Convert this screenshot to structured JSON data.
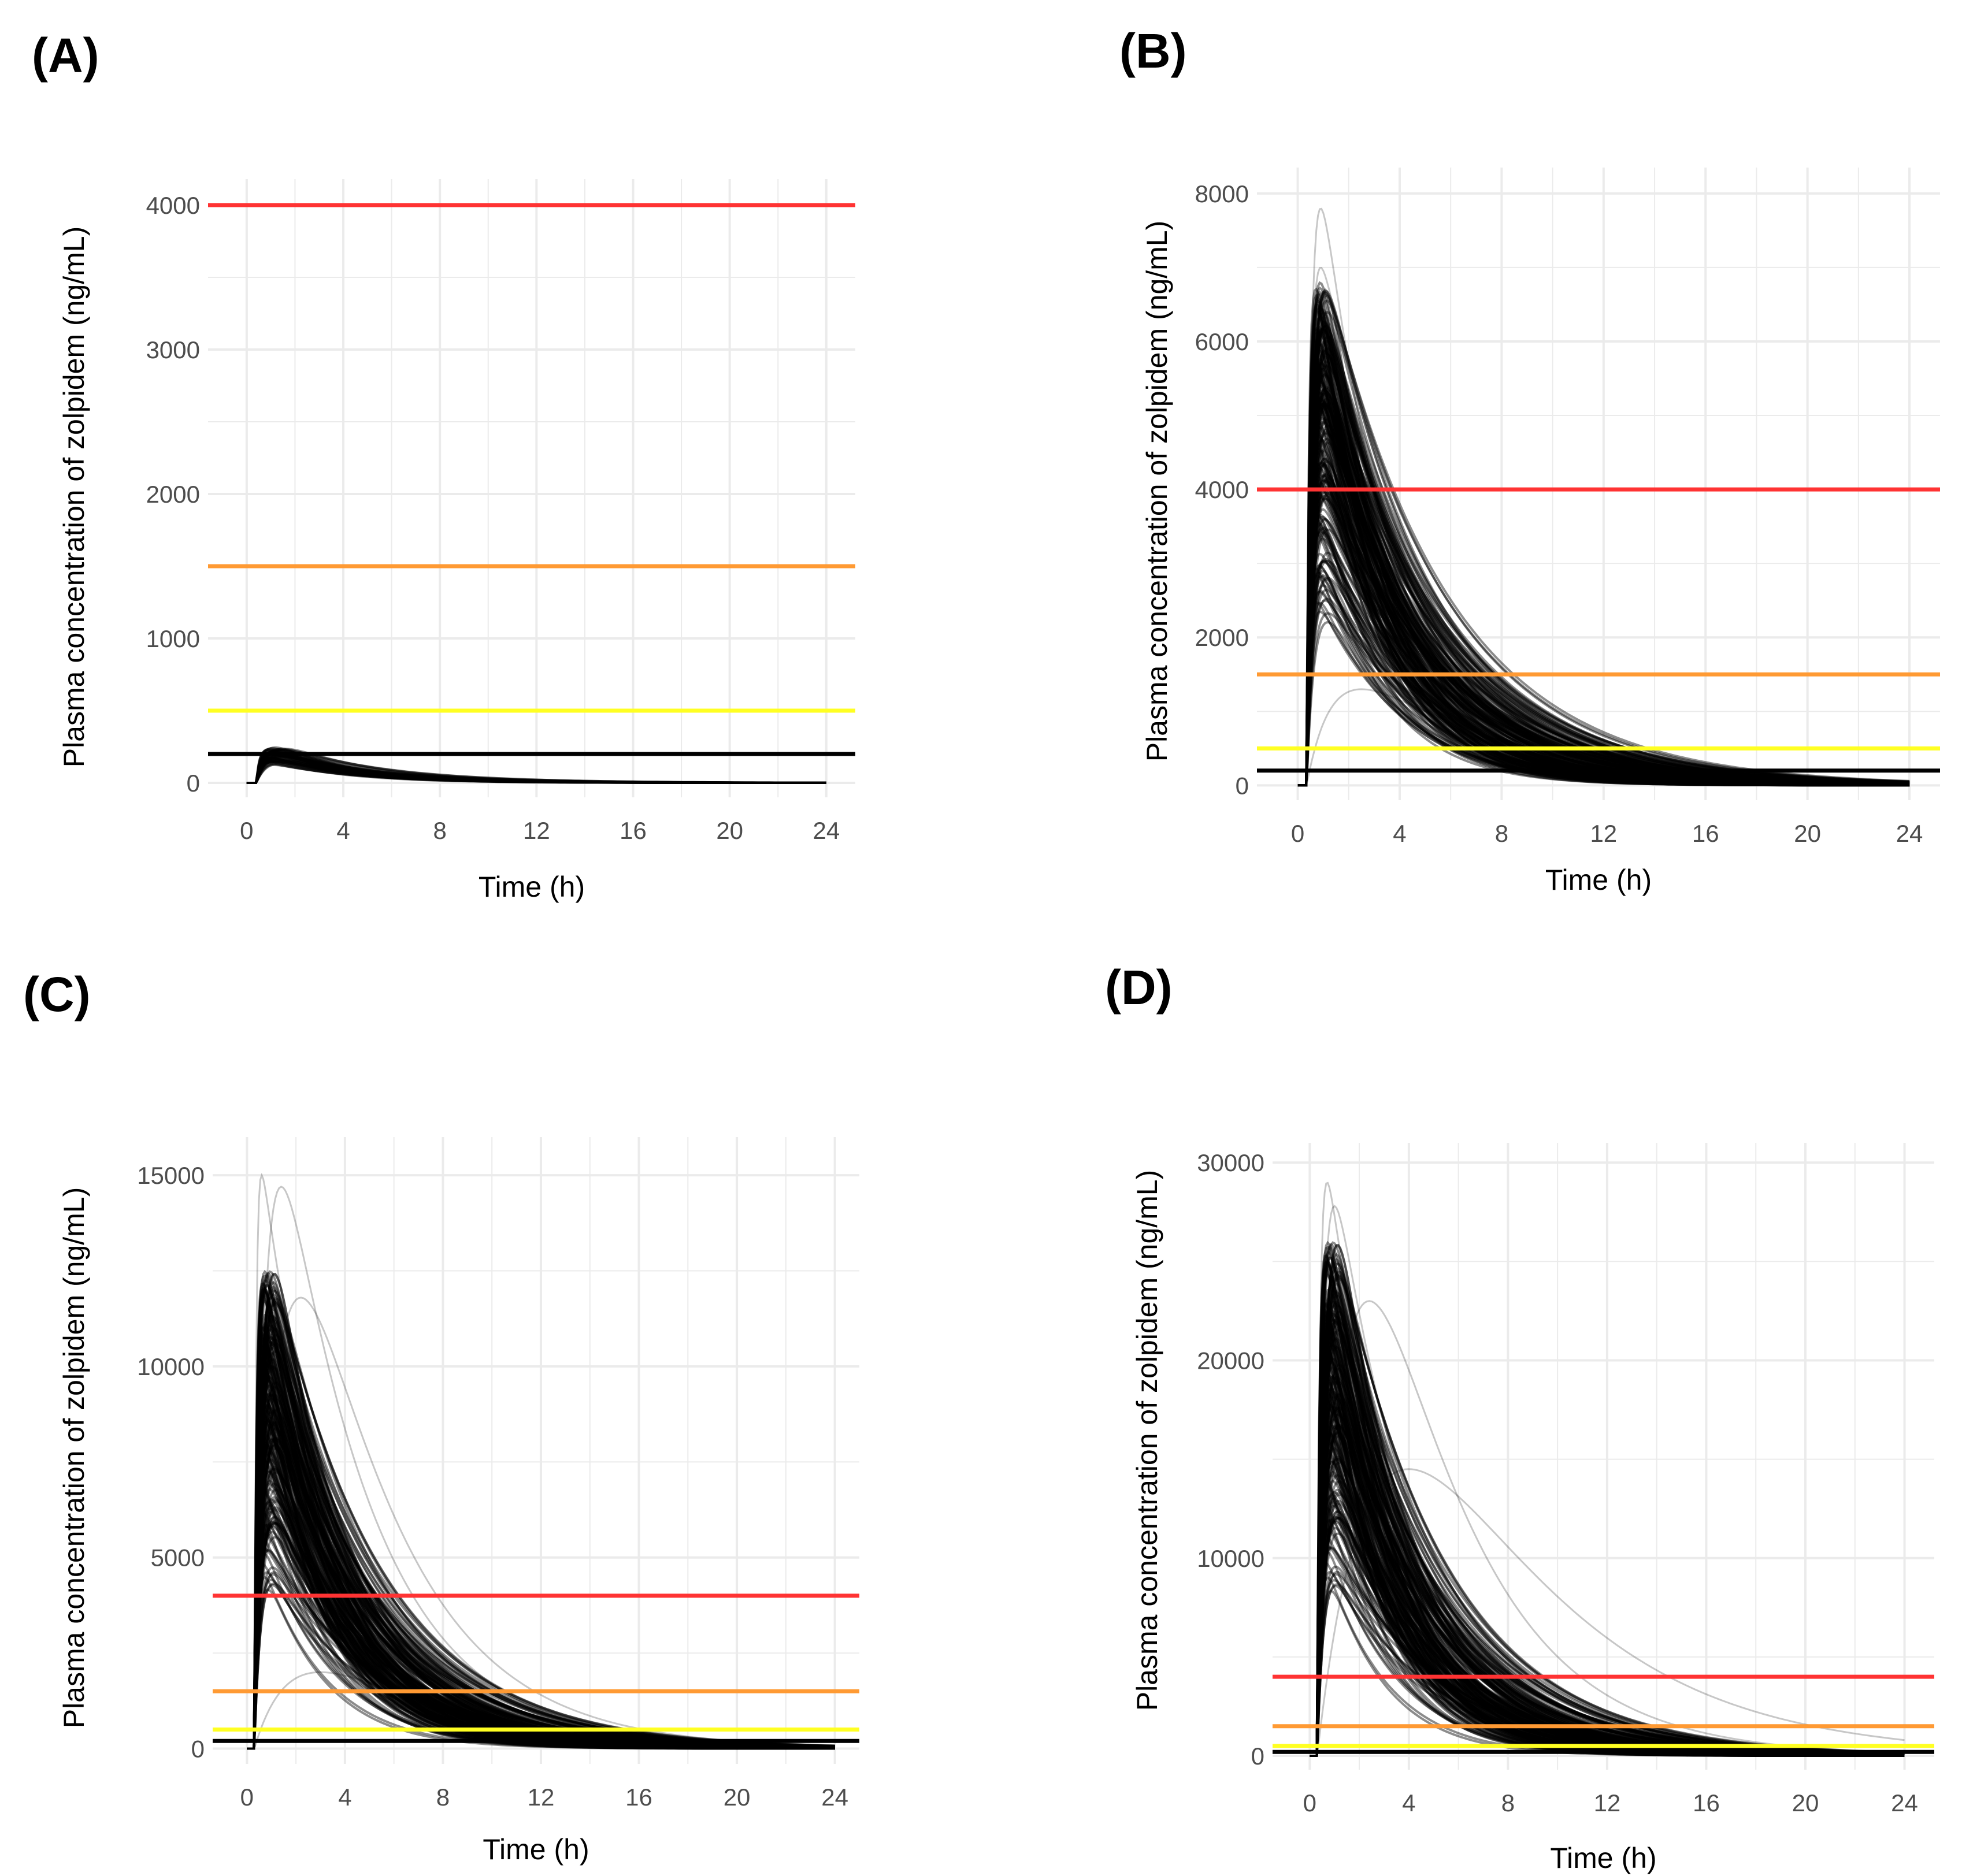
{
  "colors": {
    "red": "#ff3333",
    "orange": "#ff9a33",
    "yellow": "#ffff22",
    "black": "#000000",
    "grid": "#ebebeb"
  },
  "chart_data": [
    {
      "panel_label": "(A)",
      "type": "line",
      "title": "",
      "xlabel": "Time (h)",
      "ylabel": "Plasma concentration of zolpidem (ng/mL)",
      "xlim": [
        -1.6,
        25.2
      ],
      "ylim": [
        -100,
        4180
      ],
      "xticks": [
        "0",
        "4",
        "8",
        "12",
        "16",
        "20",
        "24"
      ],
      "xtick_values": [
        0,
        4,
        8,
        12,
        16,
        20,
        24
      ],
      "yticks": [
        "0",
        "1000",
        "2000",
        "3000",
        "4000"
      ],
      "ytick_values": [
        0,
        1000,
        2000,
        3000,
        4000
      ],
      "threshold_lines": [
        {
          "color": "red",
          "value": 4000
        },
        {
          "color": "orange",
          "value": 1500
        },
        {
          "color": "yellow",
          "value": 500
        },
        {
          "color": "black",
          "value": 200
        }
      ],
      "simulation": {
        "n_profiles": 60,
        "tlag": 0.4,
        "cmax_min": 120,
        "cmax_max": 250,
        "tmax_min": 0.8,
        "tmax_max": 1.6,
        "half_life_min": 2.0,
        "half_life_max": 3.0,
        "outliers": []
      }
    },
    {
      "panel_label": "(B)",
      "type": "line",
      "title": "",
      "xlabel": "Time (h)",
      "ylabel": "Plasma concentration of zolpidem (ng/mL)",
      "xlim": [
        -1.6,
        25.2
      ],
      "ylim": [
        -200,
        8350
      ],
      "xticks": [
        "0",
        "4",
        "8",
        "12",
        "16",
        "20",
        "24"
      ],
      "xtick_values": [
        0,
        4,
        8,
        12,
        16,
        20,
        24
      ],
      "yticks": [
        "0",
        "2000",
        "4000",
        "6000",
        "8000"
      ],
      "ytick_values": [
        0,
        2000,
        4000,
        6000,
        8000
      ],
      "threshold_lines": [
        {
          "color": "red",
          "value": 4000
        },
        {
          "color": "orange",
          "value": 1500
        },
        {
          "color": "yellow",
          "value": 500
        },
        {
          "color": "black",
          "value": 200
        }
      ],
      "simulation": {
        "n_profiles": 220,
        "tlag": 0.35,
        "cmax_min": 2200,
        "cmax_max": 6800,
        "tmax_min": 0.7,
        "tmax_max": 1.2,
        "half_life_min": 1.6,
        "half_life_max": 3.4,
        "outliers": [
          [
            0.9,
            7800,
            2.0
          ],
          [
            2.5,
            1300,
            4.0
          ],
          [
            0.9,
            7000,
            3.0
          ]
        ]
      }
    },
    {
      "panel_label": "(C)",
      "type": "line",
      "title": "",
      "xlabel": "Time (h)",
      "ylabel": "Plasma concentration of zolpidem (ng/mL)",
      "xlim": [
        -1.4,
        25.0
      ],
      "ylim": [
        -400,
        16000
      ],
      "xticks": [
        "0",
        "4",
        "8",
        "12",
        "16",
        "20",
        "24"
      ],
      "xtick_values": [
        0,
        4,
        8,
        12,
        16,
        20,
        24
      ],
      "yticks": [
        "0",
        "5000",
        "10000",
        "15000"
      ],
      "ytick_values": [
        0,
        5000,
        10000,
        15000
      ],
      "threshold_lines": [
        {
          "color": "red",
          "value": 4000
        },
        {
          "color": "orange",
          "value": 1500
        },
        {
          "color": "yellow",
          "value": 500
        },
        {
          "color": "black",
          "value": 200
        }
      ],
      "simulation": {
        "n_profiles": 220,
        "tlag": 0.3,
        "cmax_min": 4000,
        "cmax_max": 12500,
        "tmax_min": 0.6,
        "tmax_max": 1.2,
        "half_life_min": 1.6,
        "half_life_max": 3.2,
        "outliers": [
          [
            1.4,
            14700,
            2.6
          ],
          [
            0.6,
            15000,
            2.2
          ],
          [
            2.2,
            11800,
            2.8
          ],
          [
            3.0,
            2000,
            4.0
          ]
        ]
      }
    },
    {
      "panel_label": "(D)",
      "type": "line",
      "title": "",
      "xlabel": "Time (h)",
      "ylabel": "Plasma concentration of zolpidem (ng/mL)",
      "xlim": [
        -1.5,
        25.2
      ],
      "ylim": [
        -700,
        31000
      ],
      "xticks": [
        "0",
        "4",
        "8",
        "12",
        "16",
        "20",
        "24"
      ],
      "xtick_values": [
        0,
        4,
        8,
        12,
        16,
        20,
        24
      ],
      "yticks": [
        "0",
        "10000",
        "20000",
        "30000"
      ],
      "ytick_values": [
        0,
        10000,
        20000,
        30000
      ],
      "threshold_lines": [
        {
          "color": "red",
          "value": 4000
        },
        {
          "color": "orange",
          "value": 1500
        },
        {
          "color": "yellow",
          "value": 500
        },
        {
          "color": "black",
          "value": 200
        }
      ],
      "simulation": {
        "n_profiles": 220,
        "tlag": 0.3,
        "cmax_min": 8000,
        "cmax_max": 26000,
        "tmax_min": 0.6,
        "tmax_max": 1.2,
        "half_life_min": 1.5,
        "half_life_max": 3.2,
        "outliers": [
          [
            0.7,
            29000,
            2.2
          ],
          [
            1.0,
            27800,
            2.4
          ],
          [
            2.4,
            23000,
            2.8
          ],
          [
            4.0,
            14500,
            4.0
          ]
        ]
      }
    }
  ]
}
